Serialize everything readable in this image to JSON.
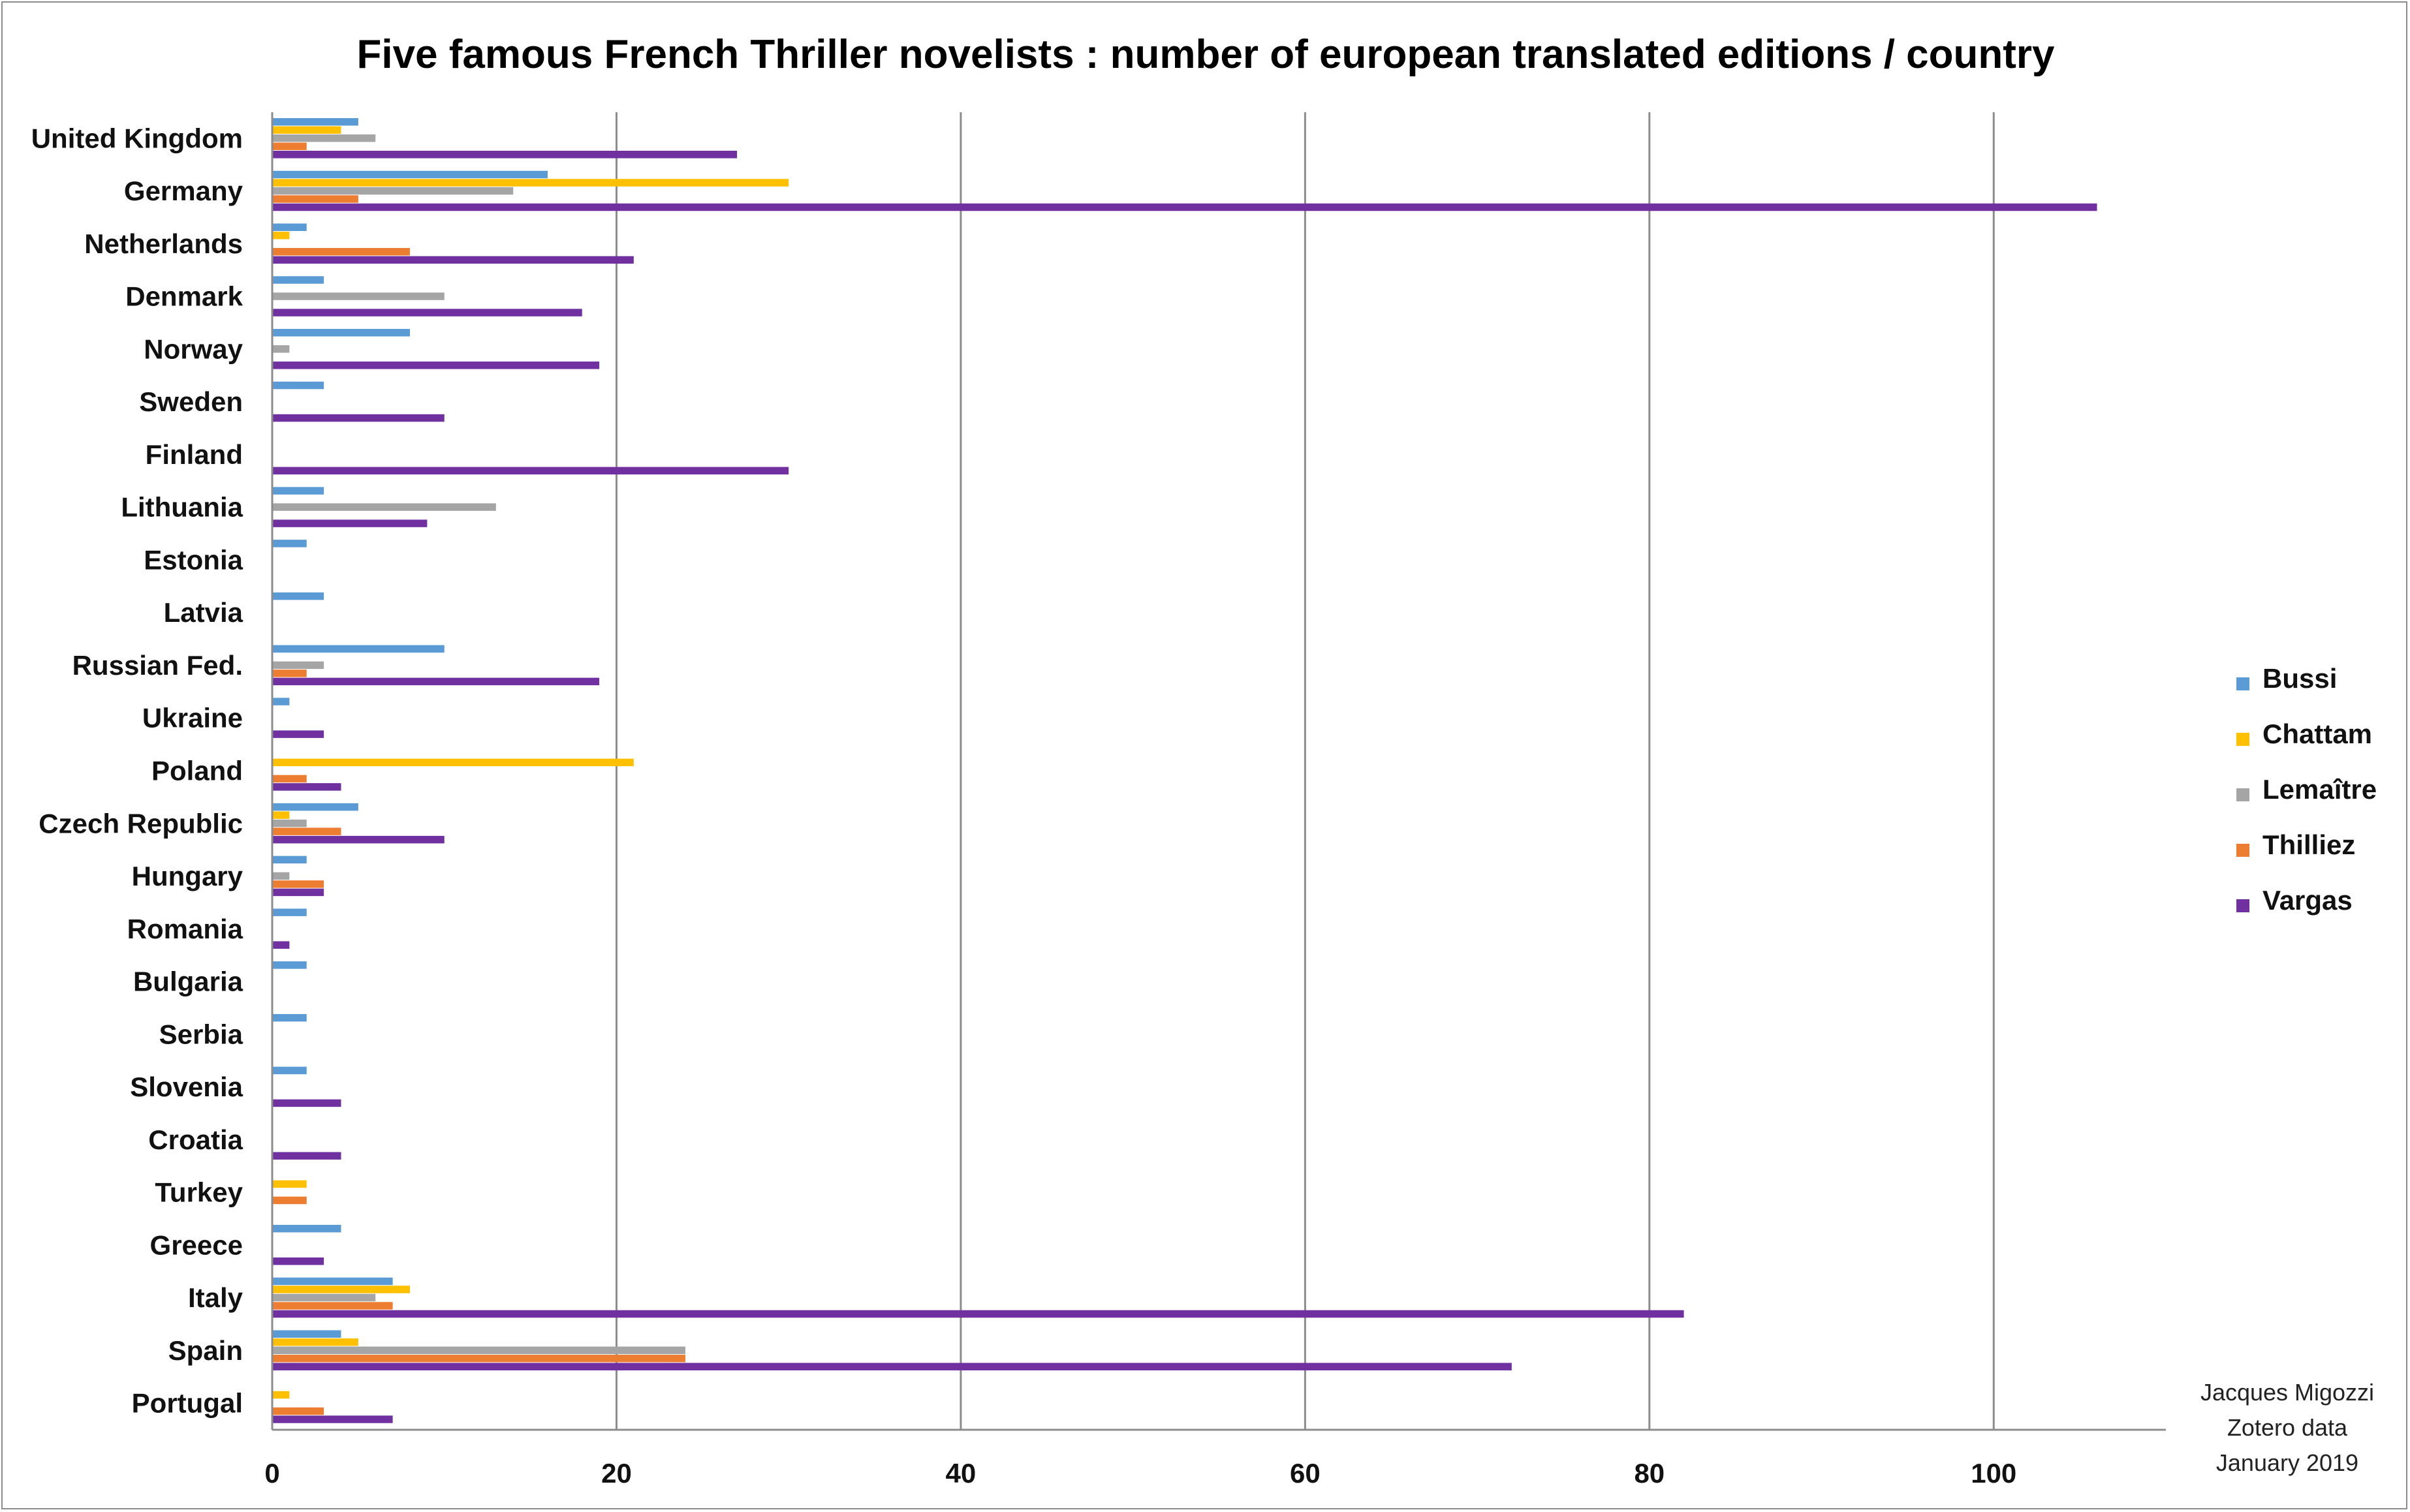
{
  "chart_data": {
    "type": "bar",
    "orientation": "horizontal",
    "title": "Five famous French Thriller  novelists : number of european translated editions  / country",
    "categories": [
      "United Kingdom",
      "Germany",
      "Netherlands",
      "Denmark",
      "Norway",
      "Sweden",
      "Finland",
      "Lithuania",
      "Estonia",
      "Latvia",
      "Russian Fed.",
      "Ukraine",
      "Poland",
      "Czech Republic",
      "Hungary",
      "Romania",
      "Bulgaria",
      "Serbia",
      "Slovenia",
      "Croatia",
      "Turkey",
      "Greece",
      "Italy",
      "Spain",
      "Portugal"
    ],
    "series": [
      {
        "name": "Bussi",
        "color": "#5b9bd5",
        "values": [
          5,
          16,
          2,
          3,
          8,
          3,
          0,
          3,
          2,
          3,
          10,
          1,
          0,
          5,
          2,
          2,
          2,
          2,
          2,
          0,
          0,
          4,
          7,
          4,
          0
        ]
      },
      {
        "name": "Chattam",
        "color": "#ffc000",
        "values": [
          4,
          30,
          1,
          0,
          0,
          0,
          0,
          0,
          0,
          0,
          0,
          0,
          21,
          1,
          0,
          0,
          0,
          0,
          0,
          0,
          2,
          0,
          8,
          5,
          1
        ]
      },
      {
        "name": "Lemaître",
        "color": "#a5a5a5",
        "values": [
          6,
          14,
          0,
          10,
          1,
          0,
          0,
          13,
          0,
          0,
          3,
          0,
          0,
          2,
          1,
          0,
          0,
          0,
          0,
          0,
          0,
          0,
          6,
          24,
          0
        ]
      },
      {
        "name": "Thilliez",
        "color": "#ed7d31",
        "values": [
          2,
          5,
          8,
          0,
          0,
          0,
          0,
          0,
          0,
          0,
          2,
          0,
          2,
          4,
          3,
          0,
          0,
          0,
          0,
          0,
          2,
          0,
          7,
          24,
          3
        ]
      },
      {
        "name": "Vargas",
        "color": "#7030a0",
        "values": [
          27,
          106,
          21,
          18,
          19,
          10,
          30,
          9,
          0,
          0,
          19,
          3,
          4,
          10,
          3,
          1,
          0,
          0,
          4,
          4,
          0,
          3,
          82,
          72,
          7
        ]
      }
    ],
    "xticks": [
      "0",
      "20",
      "40",
      "60",
      "80",
      "100"
    ],
    "xlim": [
      0,
      110
    ],
    "grid": true,
    "legend_position": "right"
  },
  "credit": {
    "line1": "Jacques Migozzi",
    "line2": "Zotero data",
    "line3": "January 2019"
  }
}
